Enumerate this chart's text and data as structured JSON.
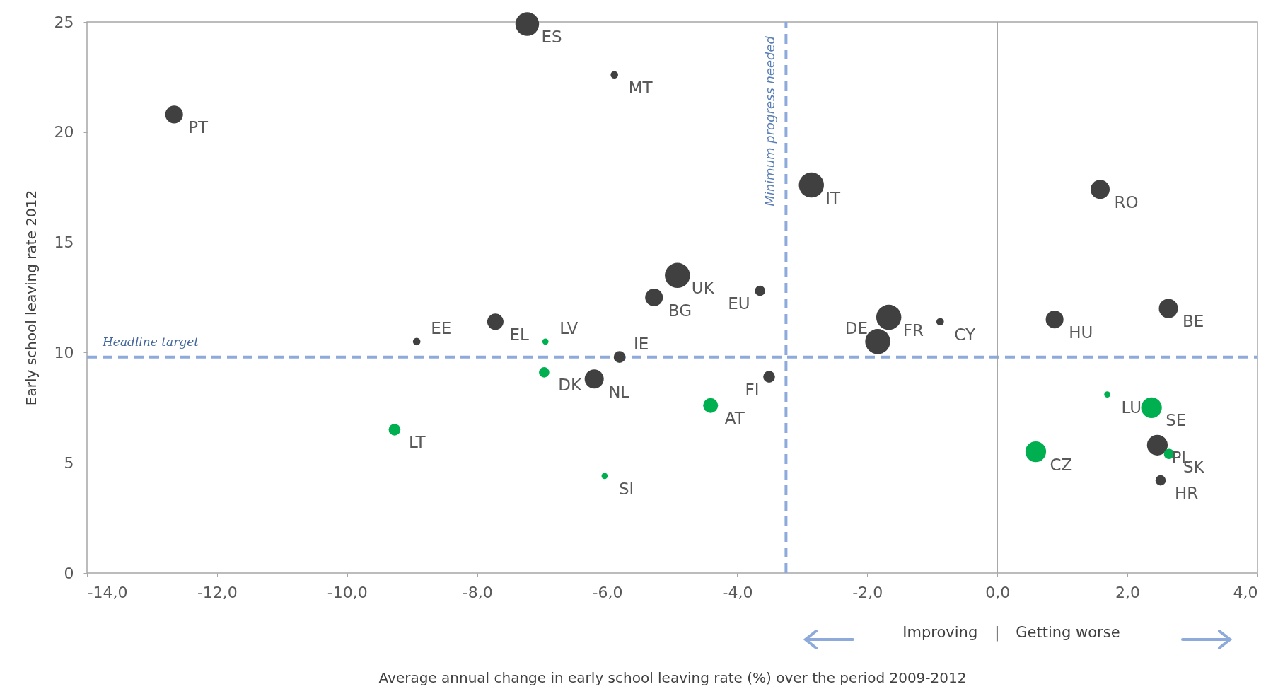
{
  "chart_data": {
    "type": "bubble",
    "xlabel": "Average annual change in early school leaving rate (%) over the period 2009-2012",
    "ylabel": "Early school leaving rate 2012",
    "xlim": [
      -14,
      4
    ],
    "xticks": [
      {
        "value": -14,
        "label": "-14,0"
      },
      {
        "value": -12,
        "label": "-12,0"
      },
      {
        "value": -10,
        "label": "-10,0"
      },
      {
        "value": -8,
        "label": "-8,0"
      },
      {
        "value": -6,
        "label": "-6,0"
      },
      {
        "value": -4,
        "label": "-4,0"
      },
      {
        "value": -2,
        "label": "-2,0"
      },
      {
        "value": 0,
        "label": "0,0"
      },
      {
        "value": 2,
        "label": "2,0"
      },
      {
        "value": 4,
        "label": "4,0"
      }
    ],
    "ylim": [
      0,
      25
    ],
    "yticks": [
      0,
      5,
      10,
      15,
      20,
      25
    ],
    "grid": false,
    "legend": false,
    "marker": "circle",
    "series": [
      {
        "color": "#404040",
        "x": [
          -7.23,
          -5.89,
          -12.66,
          -2.86,
          1.58,
          -4.92,
          -5.28,
          -3.65,
          -1.67,
          -0.88,
          -7.72,
          -8.93,
          -1.84,
          0.88,
          2.63,
          -5.81,
          -6.2,
          -3.51,
          2.46,
          2.51
        ],
        "values": [
          24.9,
          22.6,
          20.8,
          17.6,
          17.4,
          13.5,
          12.5,
          12.8,
          11.6,
          11.4,
          11.4,
          10.5,
          10.5,
          11.5,
          12.0,
          9.8,
          8.8,
          8.9,
          5.8,
          4.2
        ],
        "sizes": [
          0.89,
          0.09,
          0.5,
          1,
          0.58,
          1,
          0.5,
          0.17,
          1,
          0.09,
          0.42,
          0.09,
          1,
          0.5,
          0.58,
          0.22,
          0.58,
          0.22,
          0.68,
          0.17
        ]
      },
      {
        "color": "#00b050",
        "x": [
          -6.95,
          -6.97,
          -4.41,
          -9.27,
          -6.04,
          1.69,
          2.37,
          0.59,
          2.64
        ],
        "values": [
          10.5,
          9.1,
          7.6,
          6.5,
          4.4,
          8.1,
          7.5,
          5.5,
          5.4
        ],
        "sizes": [
          0.06,
          0.17,
          0.35,
          0.22,
          0.06,
          0.06,
          0.68,
          0.68,
          0.17
        ]
      }
    ],
    "ref_lines": [
      {
        "axis": "y",
        "value": 9.8,
        "label": "Headline target",
        "color": "#8eaadb",
        "line_style": "dashed"
      },
      {
        "axis": "x",
        "value": -3.25,
        "label": "Minimum progress needed",
        "color": "#8eaadb",
        "line_style": "dashed"
      },
      {
        "axis": "x",
        "value": 0,
        "label": null,
        "color": "#a6a6a6",
        "line_style": "solid"
      }
    ],
    "annotations": [
      {
        "text": "ES",
        "x": -7.23,
        "y": 24.9
      },
      {
        "text": "MT",
        "x": -5.89,
        "y": 22.6
      },
      {
        "text": "PT",
        "x": -12.66,
        "y": 20.8
      },
      {
        "text": "IT",
        "x": -2.86,
        "y": 17.6
      },
      {
        "text": "RO",
        "x": 1.58,
        "y": 17.4
      },
      {
        "text": "UK",
        "x": -4.92,
        "y": 13.5
      },
      {
        "text": "BG",
        "x": -5.28,
        "y": 12.5
      },
      {
        "text": "EU",
        "x": -3.65,
        "y": 12.8
      },
      {
        "text": "FR",
        "x": -1.67,
        "y": 11.6
      },
      {
        "text": "CY",
        "x": -0.88,
        "y": 11.4
      },
      {
        "text": "EL",
        "x": -7.72,
        "y": 11.4
      },
      {
        "text": "EE",
        "x": -8.93,
        "y": 10.5
      },
      {
        "text": "DE",
        "x": -1.84,
        "y": 10.5
      },
      {
        "text": "HU",
        "x": 0.88,
        "y": 11.5
      },
      {
        "text": "BE",
        "x": 2.63,
        "y": 12.0
      },
      {
        "text": "IE",
        "x": -5.81,
        "y": 9.8
      },
      {
        "text": "NL",
        "x": -6.2,
        "y": 8.8
      },
      {
        "text": "FI",
        "x": -3.51,
        "y": 8.9
      },
      {
        "text": "PL",
        "x": 2.46,
        "y": 5.8
      },
      {
        "text": "HR",
        "x": 2.51,
        "y": 4.2
      },
      {
        "text": "LV",
        "x": -6.95,
        "y": 10.5
      },
      {
        "text": "DK",
        "x": -6.97,
        "y": 9.1
      },
      {
        "text": "AT",
        "x": -4.41,
        "y": 7.6
      },
      {
        "text": "LT",
        "x": -9.27,
        "y": 6.5
      },
      {
        "text": "SI",
        "x": -6.04,
        "y": 4.4
      },
      {
        "text": "LU",
        "x": 1.69,
        "y": 8.1
      },
      {
        "text": "SE",
        "x": 2.37,
        "y": 7.5
      },
      {
        "text": "CZ",
        "x": 0.59,
        "y": 5.5
      },
      {
        "text": "SK",
        "x": 2.64,
        "y": 5.4
      },
      "Improving",
      "|",
      "Getting worse"
    ]
  }
}
